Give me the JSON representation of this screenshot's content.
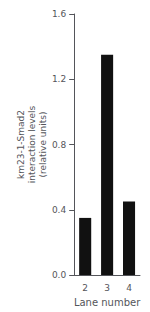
{
  "chart_data": {
    "type": "bar",
    "categories": [
      "2",
      "3",
      "4"
    ],
    "values": [
      0.35,
      1.35,
      0.45
    ],
    "color": "#111111",
    "xlabel": "Lane number",
    "ylabel": "km23-1-Smad2\ninteraction levels\n(relative units)",
    "ylim": [
      0,
      1.6
    ],
    "yticks": [
      {
        "value": 0,
        "label": "0.0"
      },
      0.4,
      0.8,
      1.2,
      1.6
    ],
    "grid": false
  }
}
